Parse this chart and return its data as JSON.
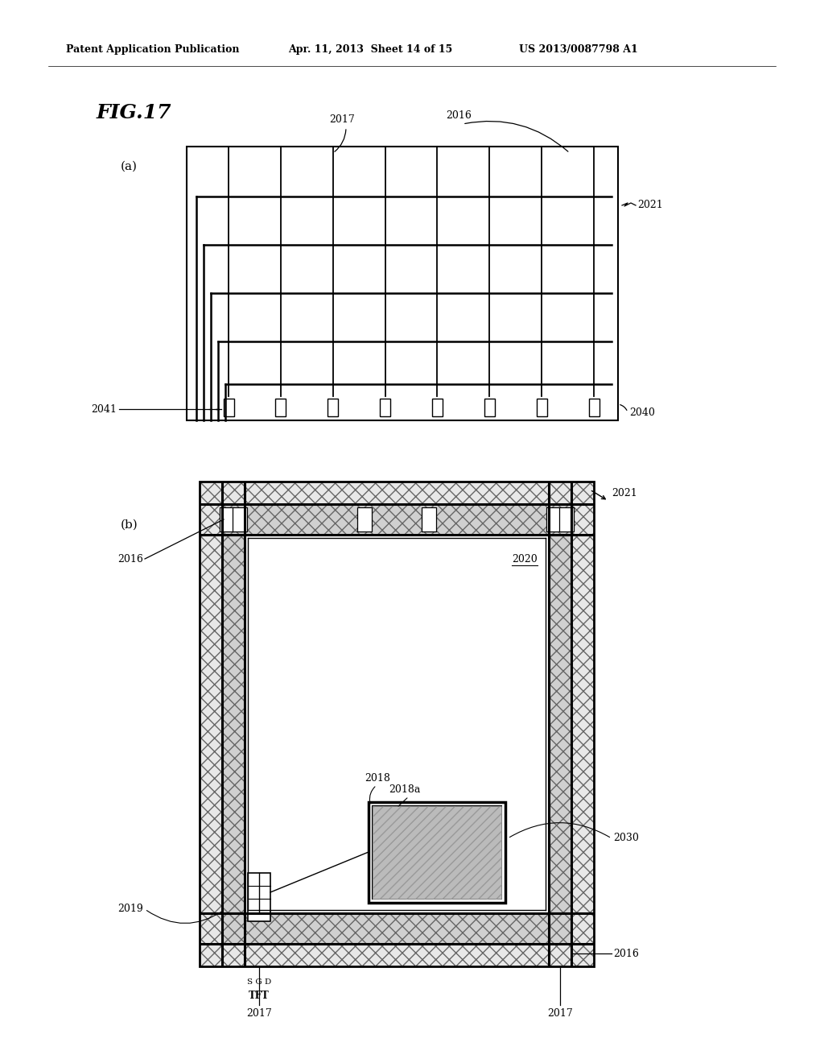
{
  "header_left": "Patent Application Publication",
  "header_mid": "Apr. 11, 2013  Sheet 14 of 15",
  "header_right": "US 2013/0087798 A1",
  "fig_title": "FIG.17",
  "bg_color": "#ffffff",
  "lc": "#000000"
}
